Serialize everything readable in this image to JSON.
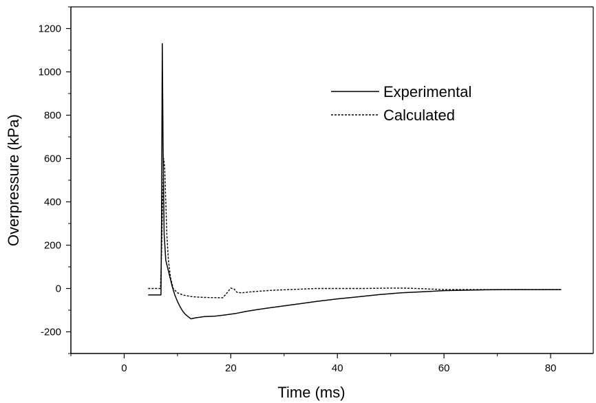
{
  "colors": {
    "line": "#000000",
    "background": "#ffffff"
  },
  "chart_data": {
    "type": "line",
    "title": "",
    "xlabel": "Time (ms)",
    "ylabel": "Overpressure (kPa)",
    "xlim": [
      -10,
      88
    ],
    "ylim": [
      -300,
      1300
    ],
    "xticks": [
      0,
      20,
      40,
      60,
      80
    ],
    "yticks": [
      -200,
      0,
      200,
      400,
      600,
      800,
      1000,
      1200
    ],
    "xtick_labels": [
      "0",
      "20",
      "40",
      "60",
      "80"
    ],
    "ytick_labels": [
      "-200",
      "0",
      "200",
      "400",
      "600",
      "800",
      "1000",
      "1200"
    ],
    "grid": false,
    "legend": "top-right",
    "series": [
      {
        "name": "Experimental",
        "style": "solid",
        "x": [
          4.5,
          6.5,
          6.9,
          7.0,
          7.15,
          7.3,
          7.5,
          7.8,
          8.2,
          8.6,
          9.0,
          9.5,
          10.0,
          10.5,
          11.0,
          11.5,
          12.0,
          12.5,
          13.5,
          15.0,
          17.0,
          19.0,
          21.0,
          23.0,
          25.0,
          27.0,
          30.0,
          33.0,
          36.0,
          40.0,
          44.0,
          48.0,
          52.0,
          56.0,
          60.0,
          64.0,
          68.0,
          72.0,
          76.0,
          80.0,
          82.0
        ],
        "y": [
          -30,
          -30,
          -30,
          300,
          1130,
          650,
          250,
          130,
          90,
          50,
          10,
          -30,
          -60,
          -85,
          -105,
          -120,
          -130,
          -140,
          -135,
          -130,
          -128,
          -122,
          -115,
          -105,
          -97,
          -90,
          -80,
          -70,
          -60,
          -48,
          -38,
          -28,
          -20,
          -15,
          -10,
          -8,
          -6,
          -5,
          -5,
          -5,
          -5
        ]
      },
      {
        "name": "Calculated",
        "style": "dashed",
        "x": [
          4.5,
          6.8,
          7.0,
          7.2,
          7.4,
          7.6,
          7.8,
          8.0,
          8.3,
          8.7,
          9.2,
          10.0,
          11.0,
          12.5,
          14.0,
          16.0,
          18.5,
          19.3,
          20.0,
          20.6,
          21.2,
          22.0,
          24.0,
          28.0,
          32.0,
          36.0,
          40.0,
          45.0,
          50.0,
          52.0,
          55.0,
          60.0,
          65.0,
          70.0,
          75.0,
          80.0,
          82.0
        ],
        "y": [
          0,
          0,
          150,
          400,
          600,
          560,
          400,
          250,
          130,
          50,
          0,
          -20,
          -30,
          -37,
          -40,
          -42,
          -43,
          -20,
          2,
          -2,
          -18,
          -20,
          -15,
          -8,
          -4,
          0,
          0,
          0,
          2,
          2,
          0,
          -5,
          -5,
          -5,
          -5,
          -5,
          -5
        ]
      }
    ]
  }
}
